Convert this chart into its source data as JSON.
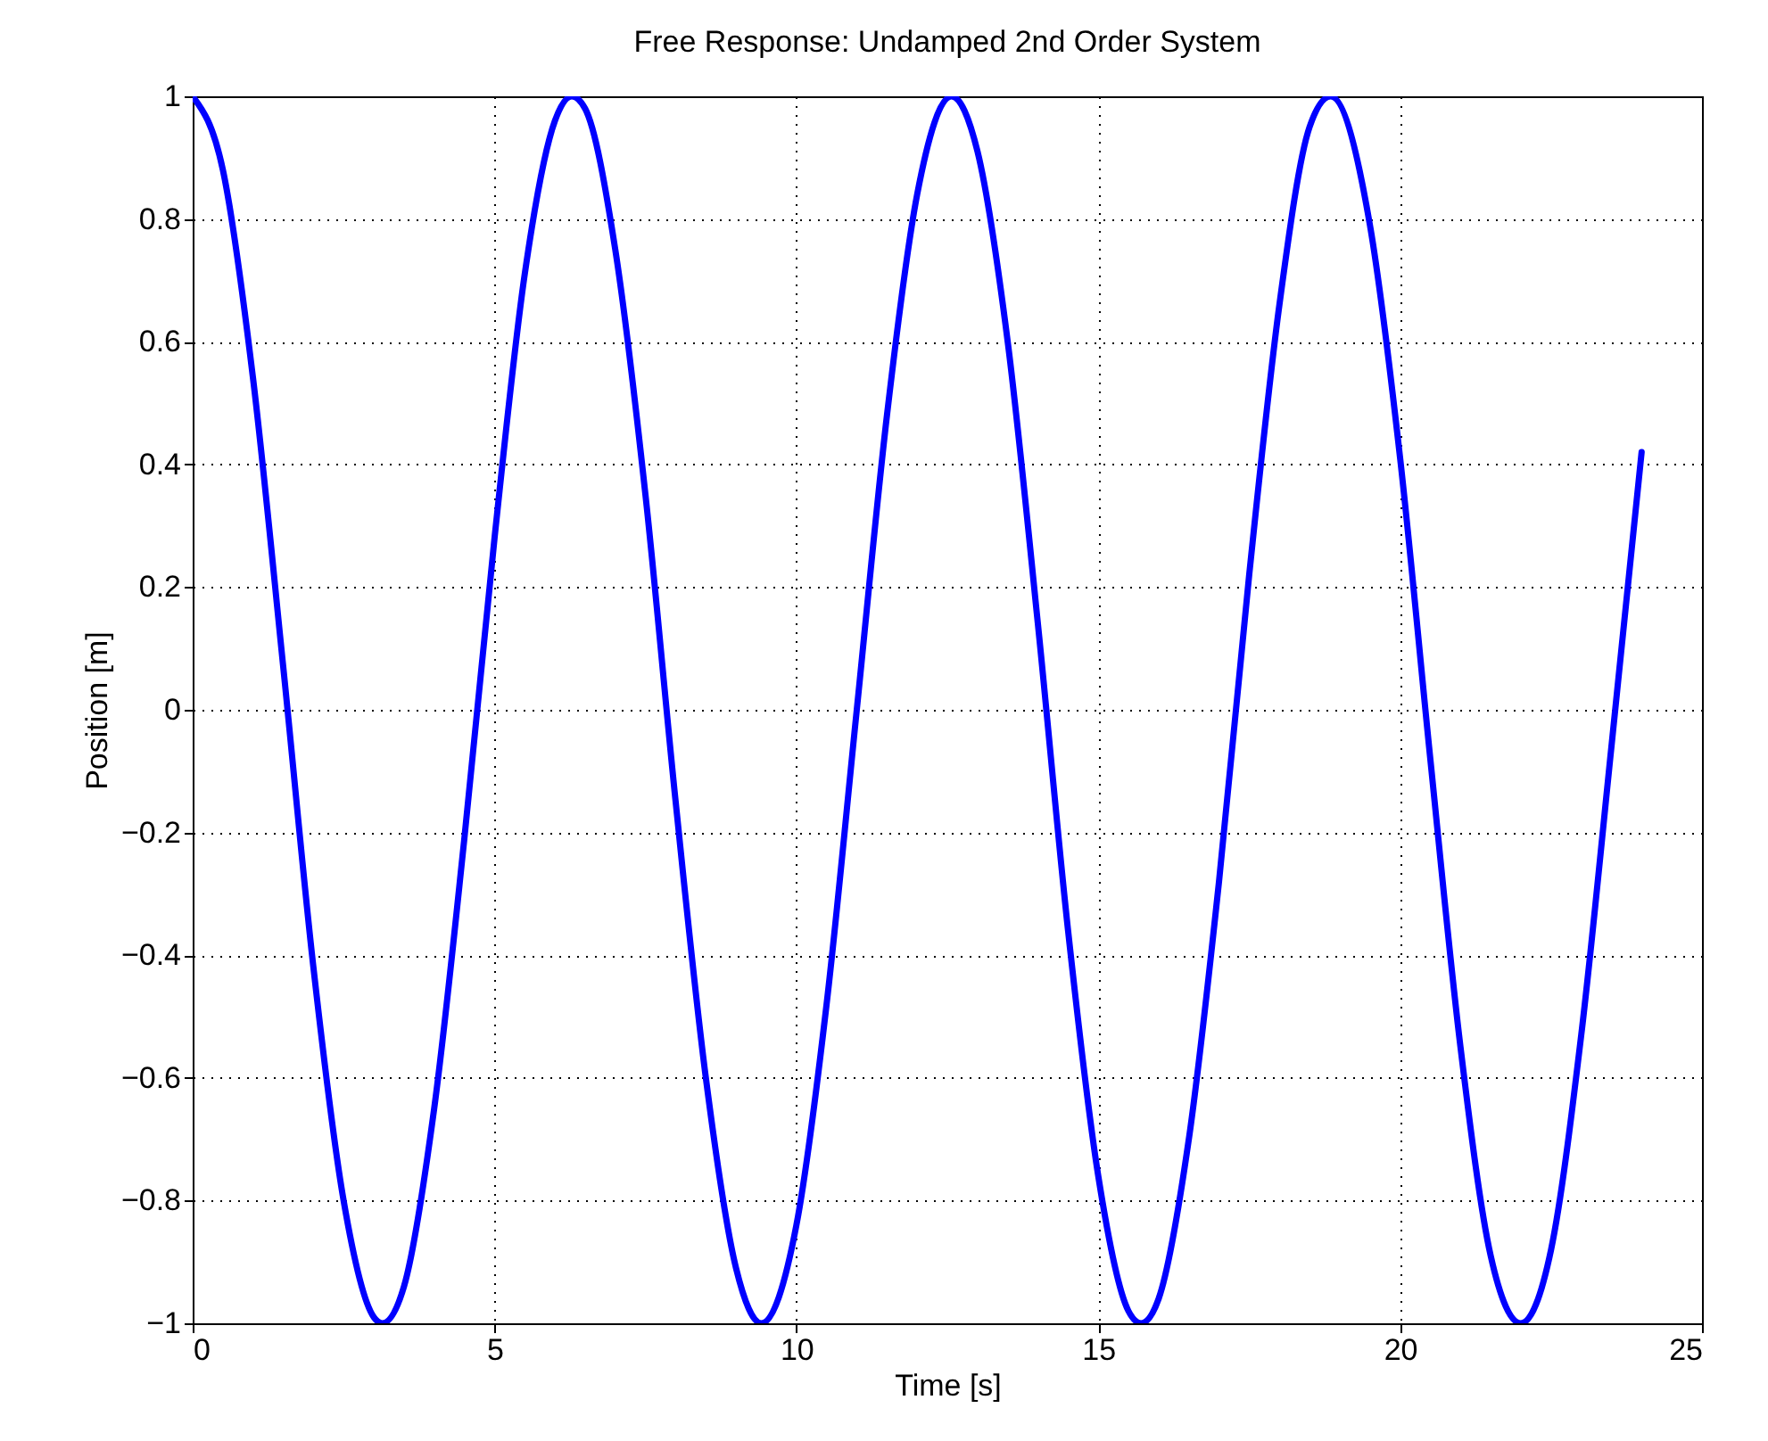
{
  "chart_data": {
    "type": "line",
    "title": "Free Response: Undamped 2nd Order System",
    "xlabel": "Time [s]",
    "ylabel": "Position [m]",
    "x": [
      0,
      0.5,
      1,
      1.5,
      2,
      2.5,
      3,
      3.14,
      3.5,
      4,
      4.5,
      5,
      5.5,
      6,
      6.28,
      6.5,
      7,
      7.5,
      8,
      8.5,
      9,
      9.42,
      10,
      10.5,
      11,
      11.5,
      12,
      12.57,
      13,
      13.5,
      14,
      14.5,
      15,
      15.5,
      15.71,
      16,
      16.5,
      17,
      17.5,
      18,
      18.5,
      18.85,
      19.5,
      20,
      20.5,
      21,
      21.5,
      22,
      22.5,
      23,
      23.5,
      24
    ],
    "series": [
      {
        "color": "#0000ff",
        "values": [
          1,
          0.88,
          0.54,
          0.07,
          -0.42,
          -0.8,
          -0.99,
          -1,
          -0.94,
          -0.65,
          -0.21,
          0.28,
          0.71,
          0.96,
          1,
          0.98,
          0.75,
          0.35,
          -0.15,
          -0.6,
          -0.91,
          -1,
          -0.84,
          -0.48,
          0,
          0.48,
          0.84,
          1,
          0.91,
          0.6,
          0.14,
          -0.36,
          -0.76,
          -0.98,
          -1,
          -0.96,
          -0.7,
          -0.28,
          0.22,
          0.66,
          0.95,
          1,
          0.79,
          0.41,
          -0.08,
          -0.55,
          -0.89,
          -1,
          -0.88,
          -0.53,
          -0.06,
          0.42
        ]
      }
    ],
    "xlim": [
      0,
      25
    ],
    "xticks": [
      0,
      5,
      10,
      15,
      20,
      25
    ],
    "ylim": [
      -1,
      1
    ],
    "yticks": [
      -1,
      -0.8,
      -0.6,
      -0.4,
      -0.2,
      0,
      0.2,
      0.4,
      0.6,
      0.8,
      1
    ],
    "grid": true,
    "marker": "none",
    "line_style": "solid"
  }
}
